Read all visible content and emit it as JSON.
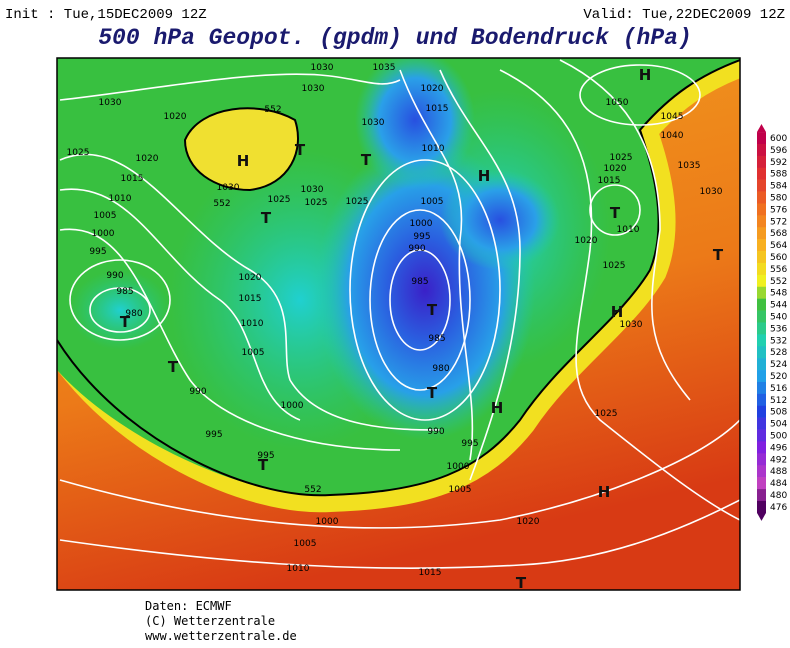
{
  "header": {
    "init": "Init : Tue,15DEC2009 12Z",
    "valid": "Valid: Tue,22DEC2009 12Z",
    "title": "500 hPa Geopot. (gpdm) und Bodendruck (hPa)"
  },
  "legend": {
    "levels": [
      600,
      596,
      592,
      588,
      584,
      580,
      576,
      572,
      568,
      564,
      560,
      556,
      552,
      548,
      544,
      540,
      536,
      532,
      528,
      524,
      520,
      516,
      512,
      508,
      504,
      500,
      496,
      492,
      488,
      484,
      480,
      476
    ]
  },
  "map": {
    "labels": [
      "1030",
      "1035",
      "1030",
      "1020",
      "552",
      "1030",
      "1020",
      "1015",
      "1030",
      "1010",
      "1025",
      "1020",
      "1015",
      "1010",
      "1005",
      "1000",
      "995",
      "990",
      "985",
      "980",
      "1030",
      "552",
      "1025",
      "1030",
      "1025",
      "1025",
      "1005",
      "1000",
      "995",
      "990",
      "985",
      "985",
      "980",
      "990",
      "995",
      "1000",
      "1005",
      "1020",
      "1015",
      "1010",
      "1005",
      "990",
      "1000",
      "995",
      "995",
      "552",
      "1000",
      "1005",
      "1010",
      "1015",
      "1020",
      "1025",
      "1030",
      "1025",
      "1020",
      "1010",
      "1015",
      "1020",
      "1025",
      "1050",
      "1045",
      "1040",
      "1035",
      "1030",
      "H",
      "H",
      "T",
      "T",
      "T",
      "H",
      "T",
      "T",
      "H",
      "T",
      "T",
      "T",
      "T",
      "H",
      "T",
      "H",
      "T"
    ]
  },
  "footer": {
    "source": "Daten: ECMWF",
    "copyright": "(C) Wetterzentrale",
    "url": "www.wetterzentrale.de"
  }
}
